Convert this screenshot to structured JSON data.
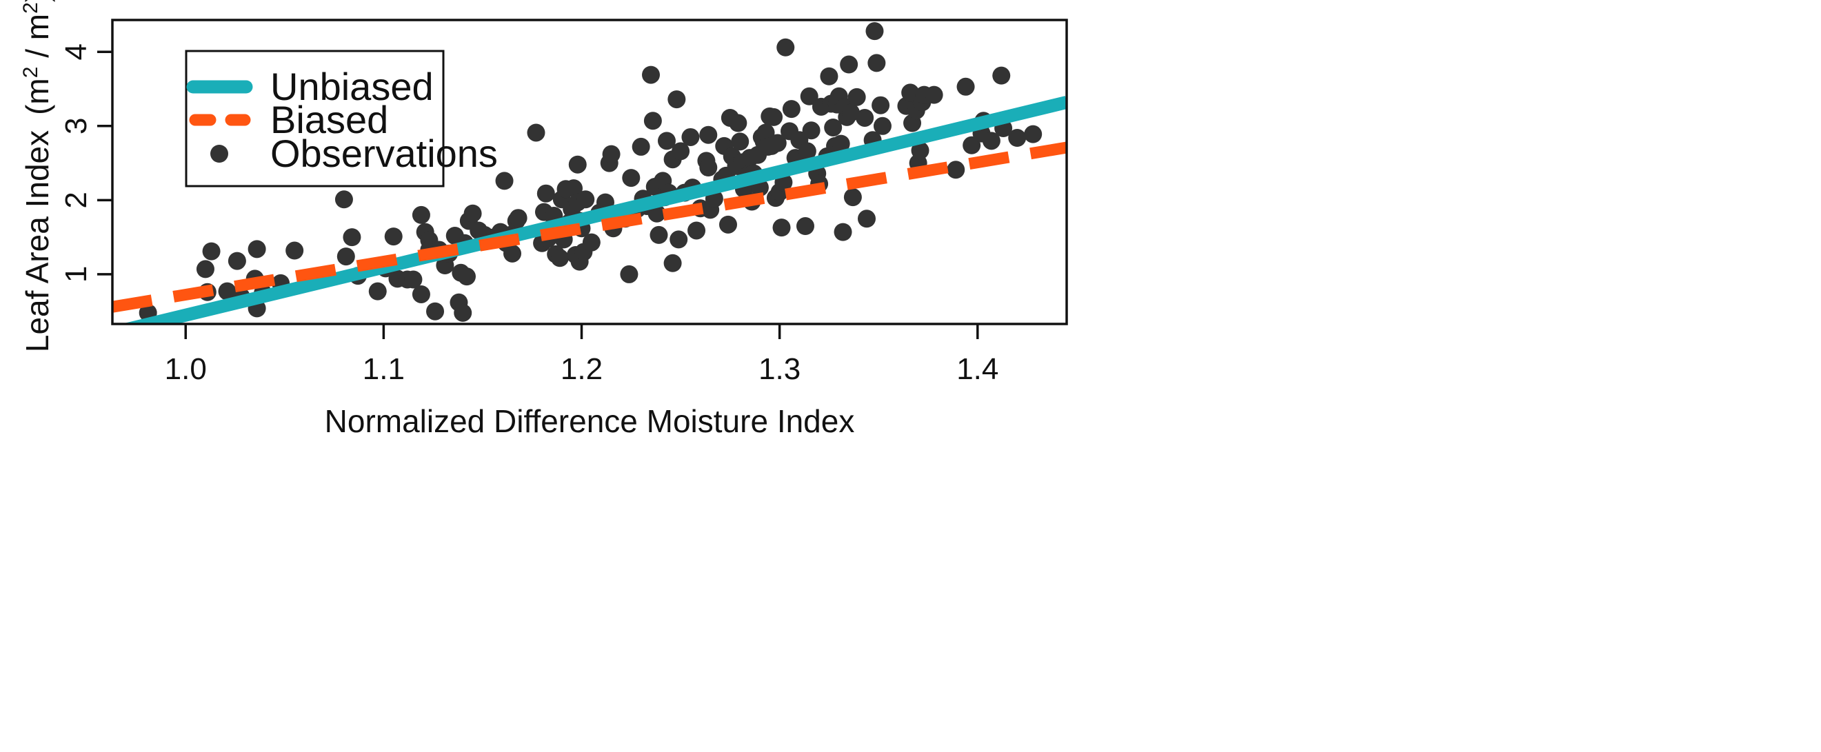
{
  "chart_data": {
    "type": "scatter",
    "xlabel": "Normalized Difference Moisture Index",
    "ylabel_main": "Leaf Area Index",
    "ylabel_unit_open": "(m",
    "ylabel_unit_sep": " / m",
    "ylabel_unit_close": ")",
    "ylabel_exponent": "2",
    "xlim": [
      0.963,
      1.445
    ],
    "ylim": [
      0.33,
      4.43
    ],
    "x_ticks": [
      "1.0",
      "1.1",
      "1.2",
      "1.3",
      "1.4"
    ],
    "y_ticks": [
      "1",
      "2",
      "3",
      "4"
    ],
    "grid": false,
    "legend": {
      "position": "top-left",
      "entries": [
        {
          "label": "Unbiased",
          "style": "solid-line",
          "color": "#1aaeb8"
        },
        {
          "label": "Biased",
          "style": "dashed-line",
          "color": "#ff5511"
        },
        {
          "label": "Observations",
          "style": "point",
          "color": "#333333"
        }
      ]
    },
    "lines": [
      {
        "name": "Unbiased",
        "color": "#1aaeb8",
        "style": "solid",
        "points": [
          [
            0.963,
            0.21
          ],
          [
            1.445,
            3.32
          ]
        ]
      },
      {
        "name": "Biased",
        "color": "#ff5511",
        "style": "dashed",
        "points": [
          [
            0.963,
            0.56
          ],
          [
            1.445,
            2.71
          ]
        ]
      }
    ],
    "observations": {
      "name": "Observations",
      "color": "#333333",
      "points": [
        [
          0.981,
          0.48
        ],
        [
          1.01,
          1.07
        ],
        [
          1.011,
          0.76
        ],
        [
          1.013,
          1.31
        ],
        [
          1.021,
          0.77
        ],
        [
          1.026,
          1.18
        ],
        [
          1.028,
          0.7
        ],
        [
          1.035,
          0.94
        ],
        [
          1.036,
          1.34
        ],
        [
          1.036,
          0.54
        ],
        [
          1.039,
          0.75
        ],
        [
          1.048,
          0.88
        ],
        [
          1.055,
          1.32
        ],
        [
          1.08,
          2.01
        ],
        [
          1.081,
          1.24
        ],
        [
          1.084,
          1.5
        ],
        [
          1.087,
          0.98
        ],
        [
          1.097,
          0.77
        ],
        [
          1.101,
          1.08
        ],
        [
          1.105,
          1.51
        ],
        [
          1.107,
          0.94
        ],
        [
          1.112,
          0.93
        ],
        [
          1.115,
          0.93
        ],
        [
          1.119,
          1.8
        ],
        [
          1.119,
          0.73
        ],
        [
          1.121,
          1.57
        ],
        [
          1.123,
          1.46
        ],
        [
          1.123,
          1.33
        ],
        [
          1.126,
          0.5
        ],
        [
          1.128,
          1.33
        ],
        [
          1.131,
          1.12
        ],
        [
          1.133,
          1.28
        ],
        [
          1.136,
          1.52
        ],
        [
          1.138,
          0.62
        ],
        [
          1.139,
          1.02
        ],
        [
          1.14,
          0.48
        ],
        [
          1.141,
          1.42
        ],
        [
          1.142,
          0.97
        ],
        [
          1.143,
          1.72
        ],
        [
          1.145,
          1.82
        ],
        [
          1.148,
          1.59
        ],
        [
          1.151,
          1.53
        ],
        [
          1.156,
          1.5
        ],
        [
          1.159,
          1.57
        ],
        [
          1.161,
          2.26
        ],
        [
          1.162,
          1.42
        ],
        [
          1.164,
          1.53
        ],
        [
          1.165,
          1.28
        ],
        [
          1.167,
          1.72
        ],
        [
          1.168,
          1.76
        ],
        [
          1.177,
          2.91
        ],
        [
          1.18,
          1.42
        ],
        [
          1.181,
          1.84
        ],
        [
          1.182,
          2.09
        ],
        [
          1.183,
          1.48
        ],
        [
          1.185,
          1.63
        ],
        [
          1.186,
          1.79
        ],
        [
          1.187,
          1.27
        ],
        [
          1.189,
          1.22
        ],
        [
          1.19,
          2.01
        ],
        [
          1.191,
          1.47
        ],
        [
          1.192,
          2.15
        ],
        [
          1.194,
          1.7
        ],
        [
          1.195,
          1.88
        ],
        [
          1.196,
          2.16
        ],
        [
          1.197,
          1.26
        ],
        [
          1.198,
          2.48
        ],
        [
          1.198,
          1.97
        ],
        [
          1.199,
          1.72
        ],
        [
          1.199,
          1.17
        ],
        [
          1.2,
          1.62
        ],
        [
          1.201,
          1.3
        ],
        [
          1.202,
          2.01
        ],
        [
          1.205,
          1.43
        ],
        [
          1.209,
          1.83
        ],
        [
          1.212,
          1.97
        ],
        [
          1.214,
          2.5
        ],
        [
          1.215,
          2.62
        ],
        [
          1.216,
          1.62
        ],
        [
          1.222,
          1.75
        ],
        [
          1.224,
          1.0
        ],
        [
          1.225,
          2.3
        ],
        [
          1.228,
          1.88
        ],
        [
          1.23,
          2.72
        ],
        [
          1.231,
          2.02
        ],
        [
          1.233,
          1.92
        ],
        [
          1.235,
          3.69
        ],
        [
          1.236,
          3.07
        ],
        [
          1.237,
          2.18
        ],
        [
          1.238,
          1.82
        ],
        [
          1.239,
          1.53
        ],
        [
          1.241,
          2.26
        ],
        [
          1.242,
          2.04
        ],
        [
          1.243,
          2.8
        ],
        [
          1.244,
          2.1
        ],
        [
          1.246,
          2.55
        ],
        [
          1.246,
          1.15
        ],
        [
          1.248,
          3.36
        ],
        [
          1.249,
          1.47
        ],
        [
          1.25,
          2.66
        ],
        [
          1.252,
          2.1
        ],
        [
          1.255,
          2.85
        ],
        [
          1.256,
          2.17
        ],
        [
          1.258,
          1.59
        ],
        [
          1.26,
          1.89
        ],
        [
          1.263,
          2.53
        ],
        [
          1.264,
          2.44
        ],
        [
          1.264,
          2.88
        ],
        [
          1.265,
          1.87
        ],
        [
          1.267,
          2.02
        ],
        [
          1.271,
          2.28
        ],
        [
          1.272,
          2.73
        ],
        [
          1.273,
          2.33
        ],
        [
          1.274,
          1.67
        ],
        [
          1.275,
          3.11
        ],
        [
          1.276,
          2.59
        ],
        [
          1.278,
          2.46
        ],
        [
          1.279,
          3.04
        ],
        [
          1.28,
          2.79
        ],
        [
          1.281,
          2.51
        ],
        [
          1.282,
          2.15
        ],
        [
          1.283,
          2.32
        ],
        [
          1.285,
          2.57
        ],
        [
          1.286,
          1.98
        ],
        [
          1.287,
          2.36
        ],
        [
          1.289,
          2.61
        ],
        [
          1.29,
          2.17
        ],
        [
          1.291,
          2.85
        ],
        [
          1.292,
          2.79
        ],
        [
          1.293,
          2.91
        ],
        [
          1.294,
          2.72
        ],
        [
          1.295,
          3.13
        ],
        [
          1.296,
          2.73
        ],
        [
          1.297,
          3.12
        ],
        [
          1.298,
          2.03
        ],
        [
          1.299,
          2.77
        ],
        [
          1.3,
          2.11
        ],
        [
          1.301,
          1.63
        ],
        [
          1.302,
          2.24
        ],
        [
          1.303,
          4.06
        ],
        [
          1.305,
          2.93
        ],
        [
          1.306,
          3.23
        ],
        [
          1.308,
          2.57
        ],
        [
          1.31,
          2.81
        ],
        [
          1.313,
          1.65
        ],
        [
          1.314,
          2.66
        ],
        [
          1.315,
          3.4
        ],
        [
          1.316,
          2.94
        ],
        [
          1.319,
          2.36
        ],
        [
          1.32,
          2.22
        ],
        [
          1.321,
          3.26
        ],
        [
          1.324,
          2.59
        ],
        [
          1.325,
          3.67
        ],
        [
          1.326,
          3.3
        ],
        [
          1.327,
          2.98
        ],
        [
          1.328,
          2.73
        ],
        [
          1.329,
          3.29
        ],
        [
          1.33,
          3.4
        ],
        [
          1.331,
          2.76
        ],
        [
          1.332,
          1.57
        ],
        [
          1.333,
          3.26
        ],
        [
          1.334,
          3.12
        ],
        [
          1.335,
          3.83
        ],
        [
          1.336,
          3.18
        ],
        [
          1.337,
          2.04
        ],
        [
          1.339,
          3.39
        ],
        [
          1.343,
          3.11
        ],
        [
          1.344,
          1.75
        ],
        [
          1.347,
          2.81
        ],
        [
          1.348,
          4.28
        ],
        [
          1.349,
          3.85
        ],
        [
          1.351,
          3.28
        ],
        [
          1.352,
          3.0
        ],
        [
          1.364,
          3.27
        ],
        [
          1.366,
          3.45
        ],
        [
          1.367,
          3.04
        ],
        [
          1.369,
          3.21
        ],
        [
          1.37,
          2.5
        ],
        [
          1.371,
          2.67
        ],
        [
          1.372,
          3.32
        ],
        [
          1.373,
          3.42
        ],
        [
          1.378,
          3.42
        ],
        [
          1.389,
          2.41
        ],
        [
          1.394,
          3.53
        ],
        [
          1.397,
          2.74
        ],
        [
          1.402,
          2.9
        ],
        [
          1.403,
          3.07
        ],
        [
          1.407,
          2.8
        ],
        [
          1.412,
          3.68
        ],
        [
          1.413,
          2.97
        ],
        [
          1.42,
          2.84
        ],
        [
          1.428,
          2.89
        ]
      ]
    }
  }
}
